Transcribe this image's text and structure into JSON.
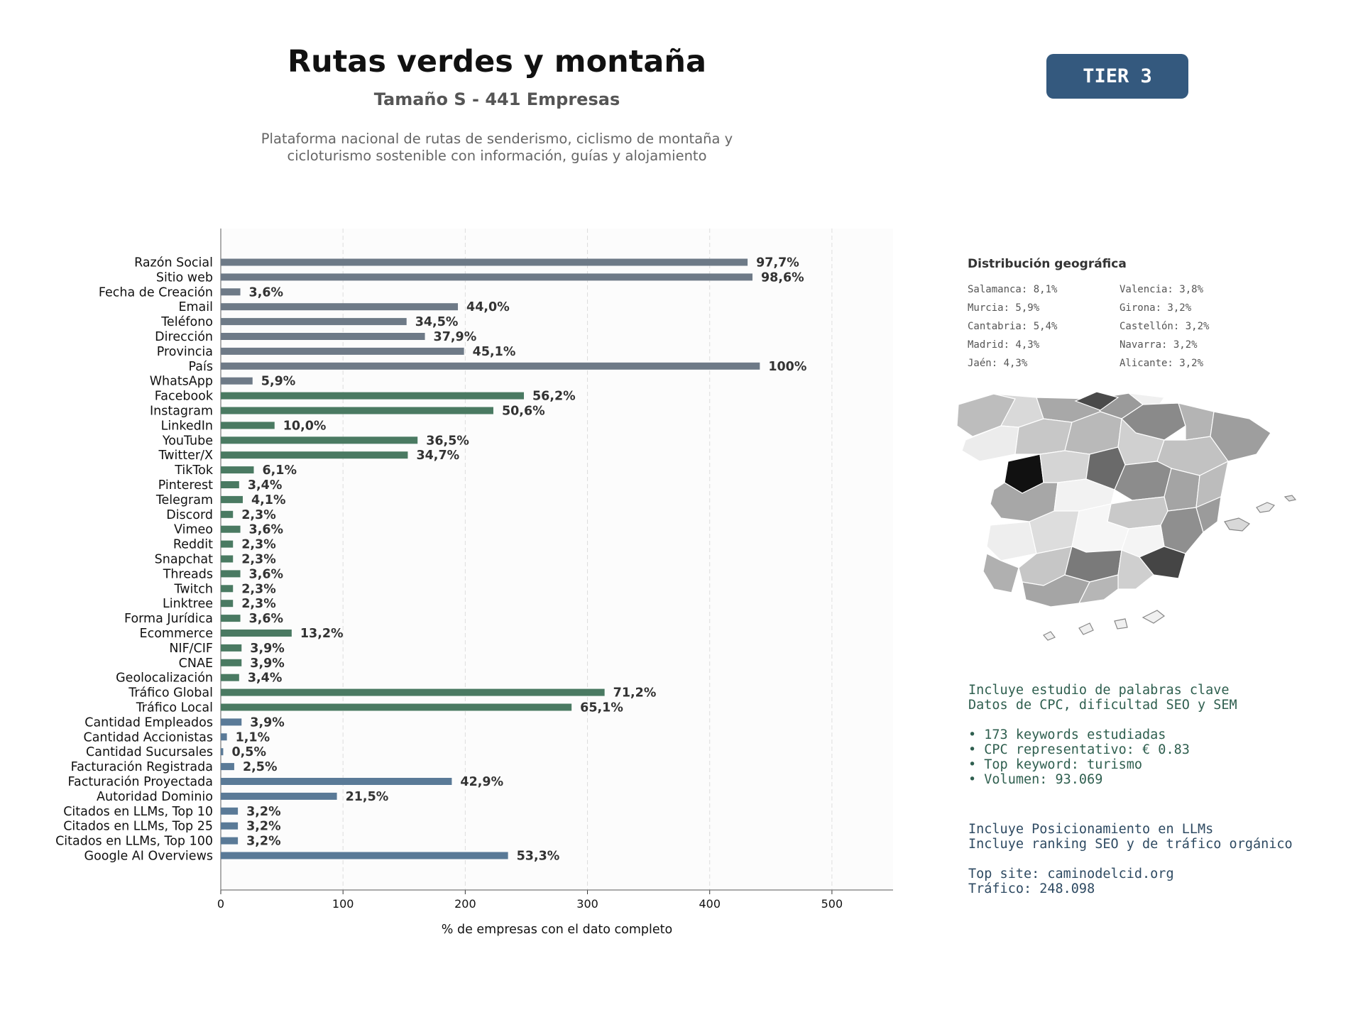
{
  "header": {
    "title": "Rutas verdes y montaña",
    "subtitle": "Tamaño S - 441 Empresas",
    "description_line1": "Plataforma nacional de rutas de senderismo, ciclismo de montaña y",
    "description_line2": "cicloturismo sostenible con información, guías y alojamiento",
    "tier_badge": "TIER 3"
  },
  "colors": {
    "gray_bar": "#6e7a87",
    "green_bar": "#4a7a62",
    "blue_bar": "#5a7a97",
    "tier_badge": "#34597e"
  },
  "chart_data": {
    "type": "bar",
    "orientation": "horizontal",
    "xlabel": "% de empresas con el dato completo",
    "xlim": [
      0,
      550
    ],
    "xticks": [
      0,
      100,
      200,
      300,
      400,
      500
    ],
    "grid": true,
    "categories": [
      "Razón Social",
      "Sitio web",
      "Fecha de Creación",
      "Email",
      "Teléfono",
      "Dirección",
      "Provincia",
      "País",
      "WhatsApp",
      "Facebook",
      "Instagram",
      "LinkedIn",
      "YouTube",
      "Twitter/X",
      "TikTok",
      "Pinterest",
      "Telegram",
      "Discord",
      "Vimeo",
      "Reddit",
      "Snapchat",
      "Threads",
      "Twitch",
      "Linktree",
      "Forma Jurídica",
      "Ecommerce",
      "NIF/CIF",
      "CNAE",
      "Geolocalización",
      "Tráfico Global",
      "Tráfico Local",
      "Cantidad Empleados",
      "Cantidad Accionistas",
      "Cantidad Sucursales",
      "Facturación Registrada",
      "Facturación Proyectada",
      "Autoridad Dominio",
      "Citados en LLMs, Top 10",
      "Citados en LLMs, Top 25",
      "Citados en LLMs, Top 100",
      "Google AI Overviews"
    ],
    "values": [
      431,
      435,
      16,
      194,
      152,
      167,
      199,
      441,
      26,
      248,
      223,
      44,
      161,
      153,
      27,
      15,
      18,
      10,
      16,
      10,
      10,
      16,
      10,
      10,
      16,
      58,
      17,
      17,
      15,
      314,
      287,
      17,
      5,
      2,
      11,
      189,
      95,
      14,
      14,
      14,
      235
    ],
    "value_labels": [
      "97,7%",
      "98,6%",
      "3,6%",
      "44,0%",
      "34,5%",
      "37,9%",
      "45,1%",
      "100%",
      "5,9%",
      "56,2%",
      "50,6%",
      "10,0%",
      "36,5%",
      "34,7%",
      "6,1%",
      "3,4%",
      "4,1%",
      "2,3%",
      "3,6%",
      "2,3%",
      "2,3%",
      "3,6%",
      "2,3%",
      "2,3%",
      "3,6%",
      "13,2%",
      "3,9%",
      "3,9%",
      "3,4%",
      "71,2%",
      "65,1%",
      "3,9%",
      "1,1%",
      "0,5%",
      "2,5%",
      "42,9%",
      "21,5%",
      "3,2%",
      "3,2%",
      "3,2%",
      "53,3%"
    ],
    "bar_colors": [
      "gray",
      "gray",
      "gray",
      "gray",
      "gray",
      "gray",
      "gray",
      "gray",
      "gray",
      "green",
      "green",
      "green",
      "green",
      "green",
      "green",
      "green",
      "green",
      "green",
      "green",
      "green",
      "green",
      "green",
      "green",
      "green",
      "green",
      "green",
      "green",
      "green",
      "green",
      "green",
      "green",
      "blue",
      "blue",
      "blue",
      "blue",
      "blue",
      "blue",
      "blue",
      "blue",
      "blue",
      "blue"
    ]
  },
  "geo": {
    "title": "Distribución geográfica",
    "items": [
      "Salamanca: 8,1%",
      "Valencia: 3,8%",
      "Murcia: 5,9%",
      "Girona: 3,2%",
      "Cantabria: 5,4%",
      "Castellón: 3,2%",
      "Madrid: 4,3%",
      "Navarra: 3,2%",
      "Jaén: 4,3%",
      "Alicante: 3,2%"
    ]
  },
  "keywords": {
    "line1": "Incluye estudio de palabras clave",
    "line2": "Datos de CPC, dificultad SEO y SEM",
    "b1": "• 173 keywords estudiadas",
    "b2": "• CPC representativo: € 0.83",
    "b3": "• Top keyword: turismo",
    "b4": "• Volumen: 93.069"
  },
  "llm": {
    "line1": "Incluye Posicionamiento en LLMs",
    "line2": "Incluye ranking SEO y de tráfico orgánico",
    "line3": "Top site: caminodelcid.org",
    "line4": "Tráfico: 248.098"
  }
}
